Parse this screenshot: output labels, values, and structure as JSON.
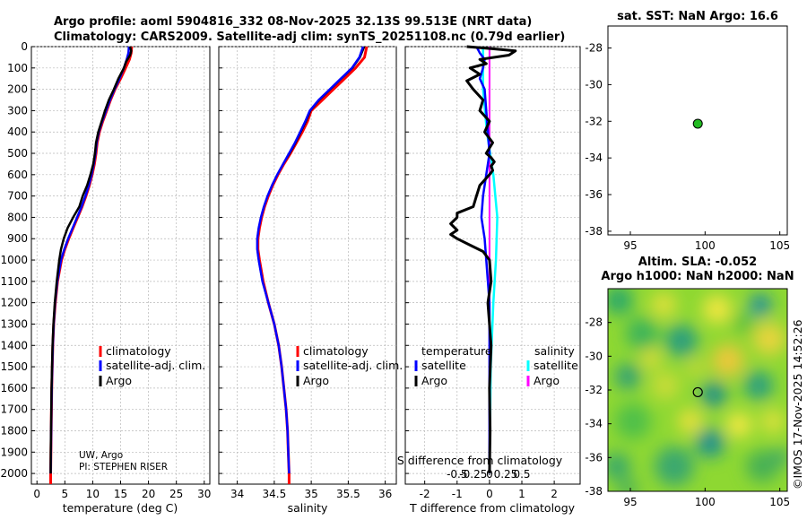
{
  "title": {
    "line1": "Argo profile: aoml 5904816_332 08-Nov-2025 32.13S 99.513E (NRT data)",
    "line2": "Climatology: CARS2009. Satellite-adj clim: synTS_20251108.nc (0.79d earlier)"
  },
  "credit": {
    "line1": "UW, Argo",
    "line2": "PI: STEPHEN RISER"
  },
  "timestamp": "©IMOS 17-Nov-2025 14:52:26",
  "colors": {
    "climatology": "#ff0000",
    "satellite": "#0000ff",
    "argo": "#000000",
    "sat_sal": "#00ffff",
    "argo_sal": "#ff00ff",
    "marker": "#22bb22"
  },
  "chart_data": [
    {
      "id": "temperature",
      "type": "line",
      "xlabel": "temperature (deg C)",
      "ylabel": "",
      "xlim": [
        -1,
        31
      ],
      "ylim": [
        2050,
        0
      ],
      "xticks": [
        0,
        5,
        10,
        15,
        20,
        25,
        30
      ],
      "yticks": [
        0,
        100,
        200,
        300,
        400,
        500,
        600,
        700,
        800,
        900,
        1000,
        1100,
        1200,
        1300,
        1400,
        1500,
        1600,
        1700,
        1800,
        1900,
        2000
      ],
      "legend": [
        "climatology",
        "satellite-adj. clim.",
        "Argo"
      ],
      "series": [
        {
          "name": "climatology",
          "depth": [
            0,
            30,
            60,
            100,
            150,
            200,
            250,
            300,
            350,
            400,
            450,
            500,
            550,
            600,
            650,
            700,
            750,
            800,
            850,
            900,
            950,
            1000,
            1100,
            1200,
            1300,
            1400,
            1500,
            1600,
            1700,
            1800,
            1900,
            2000,
            2050
          ],
          "values": [
            17.0,
            16.9,
            16.6,
            15.9,
            15.0,
            14.0,
            13.2,
            12.5,
            11.8,
            11.2,
            10.8,
            10.6,
            10.3,
            9.9,
            9.4,
            8.8,
            8.1,
            7.3,
            6.5,
            5.7,
            5.0,
            4.4,
            3.7,
            3.3,
            3.0,
            2.85,
            2.75,
            2.65,
            2.6,
            2.55,
            2.5,
            2.45,
            2.45
          ]
        },
        {
          "name": "satellite-adj. clim.",
          "depth": [
            0,
            30,
            60,
            100,
            150,
            200,
            250,
            300,
            350,
            400,
            450,
            500,
            550,
            600,
            650,
            700,
            750,
            800,
            850,
            900,
            950,
            1000,
            1100,
            1200,
            1300,
            1400,
            1500,
            1600,
            1700,
            1800,
            1900,
            2000
          ],
          "values": [
            16.5,
            16.4,
            16.1,
            15.6,
            14.8,
            13.9,
            13.1,
            12.4,
            11.7,
            11.1,
            10.7,
            10.5,
            10.2,
            9.8,
            9.3,
            8.7,
            8.0,
            7.2,
            6.4,
            5.6,
            4.9,
            4.3,
            3.65,
            3.25,
            3.0,
            2.85,
            2.75,
            2.65,
            2.6,
            2.55,
            2.5,
            2.45
          ]
        },
        {
          "name": "Argo",
          "depth": [
            0,
            20,
            40,
            70,
            100,
            150,
            200,
            250,
            300,
            350,
            400,
            450,
            500,
            550,
            600,
            650,
            700,
            750,
            800,
            850,
            900,
            950,
            1000,
            1100,
            1200,
            1300,
            1400,
            1500,
            1600,
            1700,
            1800,
            1900,
            2000
          ],
          "values": [
            16.7,
            16.9,
            16.7,
            16.0,
            15.6,
            14.6,
            13.8,
            12.9,
            12.2,
            11.6,
            11.0,
            10.6,
            10.4,
            10.1,
            9.6,
            9.0,
            8.2,
            7.6,
            6.5,
            5.5,
            4.8,
            4.3,
            4.0,
            3.55,
            3.2,
            2.95,
            2.8,
            2.7,
            2.62,
            2.57,
            2.52,
            2.48,
            2.45
          ]
        }
      ]
    },
    {
      "id": "salinity",
      "type": "line",
      "xlabel": "salinity",
      "xlim": [
        33.75,
        36.15
      ],
      "ylim": [
        2050,
        0
      ],
      "xticks": [
        34,
        34.5,
        35,
        35.5,
        36
      ],
      "legend": [
        "climatology",
        "satellite-adj. clim.",
        "Argo"
      ],
      "series": [
        {
          "name": "climatology",
          "depth": [
            0,
            50,
            100,
            150,
            200,
            250,
            300,
            350,
            400,
            450,
            500,
            550,
            600,
            650,
            700,
            750,
            800,
            850,
            900,
            950,
            1000,
            1100,
            1200,
            1300,
            1400,
            1500,
            1600,
            1700,
            1800,
            1900,
            2000,
            2050
          ],
          "values": [
            35.75,
            35.72,
            35.6,
            35.45,
            35.3,
            35.15,
            35.0,
            34.95,
            34.88,
            34.8,
            34.72,
            34.63,
            34.55,
            34.48,
            34.42,
            34.37,
            34.33,
            34.3,
            34.28,
            34.28,
            34.3,
            34.35,
            34.42,
            34.5,
            34.56,
            34.6,
            34.63,
            34.66,
            34.68,
            34.69,
            34.7,
            34.7
          ]
        },
        {
          "name": "satellite-adj. clim.",
          "depth": [
            0,
            50,
            100,
            150,
            200,
            250,
            300,
            350,
            400,
            450,
            500,
            550,
            600,
            650,
            700,
            750,
            800,
            850,
            900,
            950,
            1000,
            1100,
            1200,
            1300,
            1400,
            1500,
            1600,
            1700,
            1800,
            1900,
            2000
          ],
          "values": [
            35.7,
            35.65,
            35.55,
            35.4,
            35.25,
            35.1,
            34.98,
            34.92,
            34.85,
            34.78,
            34.7,
            34.62,
            34.54,
            34.47,
            34.41,
            34.36,
            34.32,
            34.29,
            34.27,
            34.27,
            34.29,
            34.34,
            34.42,
            34.5,
            34.56,
            34.6,
            34.63,
            34.66,
            34.68,
            34.69,
            34.7
          ]
        },
        {
          "name": "Argo",
          "depth": [
            0,
            50,
            100,
            150,
            200,
            250,
            300,
            350,
            400,
            450,
            500,
            550,
            600,
            650,
            700,
            750,
            800,
            850,
            900,
            950,
            1000,
            1100,
            1200,
            1300,
            1400,
            1500,
            1600,
            1700,
            1800,
            1900,
            2000
          ],
          "values": [
            35.72,
            35.66,
            35.56,
            35.41,
            35.26,
            35.11,
            34.99,
            34.93,
            34.86,
            34.79,
            34.71,
            34.62,
            34.54,
            34.47,
            34.41,
            34.36,
            34.32,
            34.29,
            34.27,
            34.27,
            34.29,
            34.34,
            34.42,
            34.5,
            34.56,
            34.6,
            34.63,
            34.66,
            34.68,
            34.69,
            34.7
          ]
        }
      ]
    },
    {
      "id": "difference",
      "type": "line",
      "xlabel": "T difference from climatology",
      "xlabel_top": "S difference from climatology",
      "xlim": [
        -2.6,
        2.8
      ],
      "ylim": [
        2050,
        0
      ],
      "xticks": [
        -2,
        -1,
        0,
        1,
        2
      ],
      "xticks_s": [
        "-0.5",
        "-0.25",
        "0",
        "0.25",
        "0.5"
      ],
      "legend_temp_title": "temperature",
      "legend_sal_title": "salinity",
      "legend_temp": [
        "satellite",
        "Argo"
      ],
      "legend_sal": [
        "satellite",
        "Argo"
      ],
      "series": [
        {
          "name": "T satellite",
          "depth": [
            0,
            30,
            60,
            100,
            150,
            200,
            300,
            400,
            500,
            600,
            700,
            800,
            900,
            1000,
            1100,
            1200,
            1500,
            2000
          ],
          "values": [
            -0.4,
            -0.3,
            -0.15,
            -0.2,
            -0.3,
            -0.15,
            -0.1,
            -0.05,
            0,
            -0.1,
            -0.2,
            -0.25,
            -0.15,
            -0.1,
            -0.05,
            0,
            0,
            0
          ]
        },
        {
          "name": "T Argo",
          "depth": [
            0,
            10,
            20,
            40,
            60,
            80,
            100,
            130,
            160,
            200,
            250,
            300,
            350,
            400,
            450,
            500,
            520,
            540,
            560,
            580,
            600,
            650,
            700,
            750,
            780,
            800,
            830,
            860,
            880,
            900,
            930,
            960,
            1000,
            1100,
            1200,
            1400,
            1600,
            1800,
            2000
          ],
          "values": [
            -0.7,
            0.1,
            0.8,
            0.6,
            -0.3,
            -0.1,
            -0.6,
            -0.3,
            -0.7,
            -0.5,
            -0.2,
            -0.3,
            0.0,
            -0.15,
            0.1,
            -0.1,
            0.05,
            0.15,
            0.05,
            0.1,
            0.0,
            -0.3,
            -0.4,
            -0.5,
            -1.0,
            -1.0,
            -1.2,
            -1.0,
            -1.2,
            -1.0,
            -0.6,
            -0.2,
            0.0,
            0.05,
            -0.05,
            0.05,
            0.0,
            0.02,
            0.0
          ]
        },
        {
          "name": "S satellite",
          "depth": [
            0,
            100,
            200,
            400,
            600,
            800,
            1000,
            1200,
            1500,
            2000
          ],
          "values": [
            -0.05,
            -0.05,
            -0.05,
            -0.02,
            0.03,
            0.06,
            0.05,
            0.03,
            0.01,
            0.0
          ]
        },
        {
          "name": "S Argo",
          "depth": [
            0,
            200,
            500,
            1000,
            2000
          ],
          "values": [
            0,
            0,
            0,
            0,
            0
          ]
        }
      ]
    },
    {
      "id": "sst_map",
      "type": "scatter",
      "title": "sat. SST: NaN Argo: 16.6",
      "xlim": [
        93.5,
        105.5
      ],
      "ylim": [
        -38.2,
        -26.8
      ],
      "xticks": [
        95,
        100,
        105
      ],
      "yticks": [
        -28,
        -30,
        -32,
        -34,
        -36,
        -38
      ],
      "points": [
        {
          "x": 99.513,
          "y": -32.13
        }
      ]
    },
    {
      "id": "sla_map",
      "type": "heatmap",
      "title1": "Altim. SLA: -0.052",
      "title2": "Argo h1000: NaN h2000: NaN",
      "xlim": [
        93.5,
        105.5
      ],
      "ylim": [
        -38,
        -26
      ],
      "xticks": [
        95,
        100,
        105
      ],
      "yticks": [
        -28,
        -30,
        -32,
        -34,
        -36,
        -38
      ],
      "points": [
        {
          "x": 99.513,
          "y": -32.13
        }
      ]
    }
  ]
}
